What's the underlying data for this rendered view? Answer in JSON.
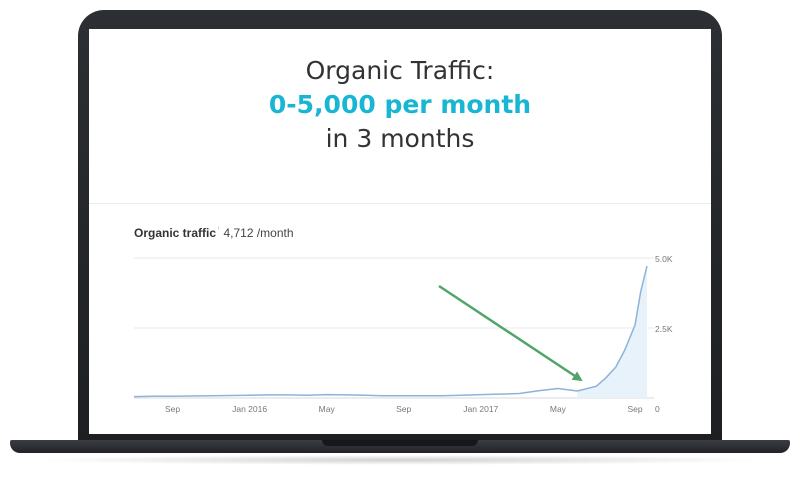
{
  "headline": {
    "line1": "Organic Traffic:",
    "line2": "0-5,000 per month",
    "line3": "in 3 months"
  },
  "metric": {
    "label": "Organic traffic",
    "info_icon": "info-icon",
    "value": "4,712 /month"
  },
  "colors": {
    "headline_accent": "#18b6d3",
    "series_line": "#8ab4d8",
    "series_fill": "#e8f2fb",
    "arrow": "#4fa56a",
    "laptop_frame": "#24272b"
  },
  "chart_data": {
    "type": "area",
    "title": "",
    "xlabel": "",
    "ylabel": "",
    "x_tick_labels": [
      "Sep",
      "Jan 2016",
      "May",
      "Sep",
      "Jan 2017",
      "May",
      "Sep"
    ],
    "y_tick_labels": [
      "5.0K",
      "2.5K",
      "0"
    ],
    "y_ticks": [
      5000,
      2500,
      0
    ],
    "ylim": [
      0,
      5000
    ],
    "grid": true,
    "y_axis_position": "right",
    "annotation": "green arrow pointing to the start of the traffic growth (around June 2017)",
    "series": [
      {
        "x": [
          "2015-07",
          "2015-08",
          "2015-09",
          "2015-10",
          "2015-11",
          "2015-12",
          "2016-01",
          "2016-02",
          "2016-03",
          "2016-04",
          "2016-05",
          "2016-06",
          "2016-07",
          "2016-08",
          "2016-09",
          "2016-10",
          "2016-11",
          "2016-12",
          "2017-01",
          "2017-02",
          "2017-03",
          "2017-04",
          "2017-05",
          "2017-06",
          "2017-07",
          "2017-07-15",
          "2017-08",
          "2017-08-15",
          "2017-09",
          "2017-09-10",
          "2017-09-20"
        ],
        "values": [
          50,
          60,
          60,
          70,
          80,
          90,
          100,
          110,
          110,
          100,
          120,
          110,
          100,
          80,
          80,
          80,
          80,
          100,
          120,
          140,
          160,
          260,
          340,
          250,
          420,
          700,
          1100,
          1700,
          2600,
          3800,
          4712
        ]
      }
    ]
  }
}
